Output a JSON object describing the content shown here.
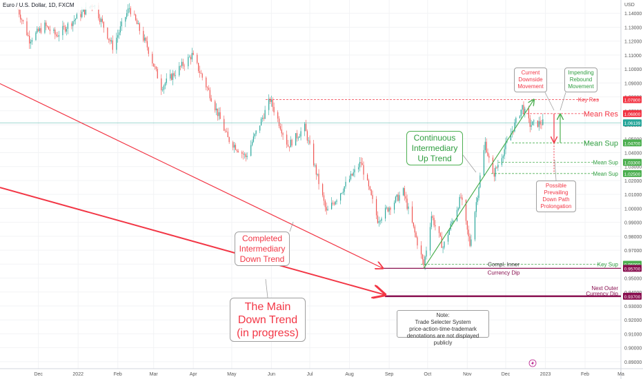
{
  "header": {
    "title": "Euro / U.S. Dollar, 1D, FXCM",
    "currency": "USD"
  },
  "colors": {
    "up": "#26a69a",
    "down": "#ef5350",
    "red_line": "#f23645",
    "green_line": "#4caf50",
    "dark_red": "#880e4f",
    "price_line": "#26a69a",
    "resistance": "#f23645",
    "support": "#4caf50"
  },
  "chart_data": {
    "type": "candlestick",
    "ylim": [
      0.885,
      1.1495
    ],
    "y_ticks": [
      "1.14000",
      "1.13000",
      "1.12000",
      "1.11000",
      "1.10000",
      "1.09000",
      "1.08000",
      "1.07000",
      "1.06000",
      "1.05000",
      "1.04000",
      "1.03000",
      "1.02000",
      "1.01000",
      "1.00000",
      "0.99000",
      "0.98000",
      "0.97000",
      "0.96000",
      "0.95000",
      "0.94000",
      "0.93000",
      "0.92000",
      "0.91000",
      "0.90000",
      "0.89000"
    ],
    "x_ticks": [
      "Dec",
      "2022",
      "Feb",
      "Mar",
      "Apr",
      "May",
      "Jun",
      "Jul",
      "Aug",
      "Sep",
      "Oct",
      "Nov",
      "Dec",
      "2023",
      "Feb",
      "Ma"
    ],
    "price_path": [
      [
        "2021-11-15",
        1.143
      ],
      [
        "2021-11-24",
        1.121
      ],
      [
        "2021-12-06",
        1.131
      ],
      [
        "2021-12-15",
        1.124
      ],
      [
        "2021-12-31",
        1.137
      ],
      [
        "2022-01-13",
        1.147
      ],
      [
        "2022-01-28",
        1.116
      ],
      [
        "2022-02-10",
        1.144
      ],
      [
        "2022-02-24",
        1.116
      ],
      [
        "2022-03-07",
        1.087
      ],
      [
        "2022-03-31",
        1.11
      ],
      [
        "2022-04-14",
        1.082
      ],
      [
        "2022-04-28",
        1.05
      ],
      [
        "2022-05-12",
        1.037
      ],
      [
        "2022-05-31",
        1.078
      ],
      [
        "2022-06-14",
        1.045
      ],
      [
        "2022-06-27",
        1.058
      ],
      [
        "2022-07-14",
        0.997
      ],
      [
        "2022-08-10",
        1.033
      ],
      [
        "2022-08-23",
        0.992
      ],
      [
        "2022-09-12",
        1.012
      ],
      [
        "2022-09-28",
        0.959
      ],
      [
        "2022-10-04",
        0.995
      ],
      [
        "2022-10-13",
        0.972
      ],
      [
        "2022-10-27",
        1.008
      ],
      [
        "2022-11-03",
        0.974
      ],
      [
        "2022-11-15",
        1.047
      ],
      [
        "2022-11-21",
        1.023
      ],
      [
        "2022-12-14",
        1.073
      ],
      [
        "2022-12-20",
        1.06
      ],
      [
        "2022-12-30",
        1.0614
      ]
    ],
    "last_price": 1.06139,
    "levels": [
      {
        "label": "Key Res",
        "value": 1.078,
        "box": "1.07800",
        "kind": "resistance"
      },
      {
        "label": "Mean Res",
        "value": 1.068,
        "box": "1.06800",
        "kind": "resistance"
      },
      {
        "label": "Mean Sup",
        "value": 1.047,
        "box": "1.04700",
        "kind": "support"
      },
      {
        "label": "Mean Sup",
        "value": 1.033,
        "box": "1.03300",
        "kind": "support"
      },
      {
        "label": "Mean Sup",
        "value": 1.025,
        "box": "1.02500",
        "kind": "support"
      },
      {
        "label": "Key Sup",
        "value": 0.9599,
        "box": "0.95990",
        "kind": "support"
      },
      {
        "label": "Compl. Inner Currency Dip",
        "value": 0.957,
        "box": "0.95700",
        "kind": "dip"
      },
      {
        "label": "Next Outer Currency Dip",
        "value": 0.937,
        "box": "0.93700",
        "kind": "dip"
      }
    ],
    "last_price_box": "1.06139",
    "trendlines": [
      {
        "name": "main-down-trend",
        "from": [
          "2021-11-01",
          1.015
        ],
        "to": [
          "2022-09-28",
          0.938
        ]
      },
      {
        "name": "intermediary-down-trend",
        "from": [
          "2021-11-01",
          1.0895
        ],
        "to": [
          "2022-09-28",
          0.957
        ]
      },
      {
        "name": "intermediary-up-trend",
        "from": [
          "2022-09-28",
          0.957
        ],
        "to": [
          "2022-12-23",
          1.078
        ]
      }
    ]
  },
  "annotations": {
    "continuous_up": [
      "Continuous",
      "Intermediary",
      "Up Trend"
    ],
    "completed_down": [
      "Completed",
      "Intermediary",
      "Down Trend"
    ],
    "main_down": [
      "The Main",
      "Down Trend",
      "(in progress)"
    ],
    "current_down": [
      "Current",
      "Downside",
      "Movement"
    ],
    "impending": [
      "Impending",
      "Rebound",
      "Movement"
    ],
    "possible": [
      "Possible",
      "Prevailing",
      "Down Path",
      "Prolongation"
    ],
    "note": [
      "Note:",
      "Trade Selecter System",
      "price-action-time-trademark",
      "denotations are not displayed publicly"
    ],
    "compl_inner": [
      "Compl. Inner",
      "Currency Dip"
    ],
    "next_outer": [
      "Next Outer",
      "Currency Dip"
    ],
    "mean_res": "Mean Res",
    "mean_sup": "Mean Sup",
    "key_res": "Key Res",
    "key_sup": "Key Sup"
  }
}
